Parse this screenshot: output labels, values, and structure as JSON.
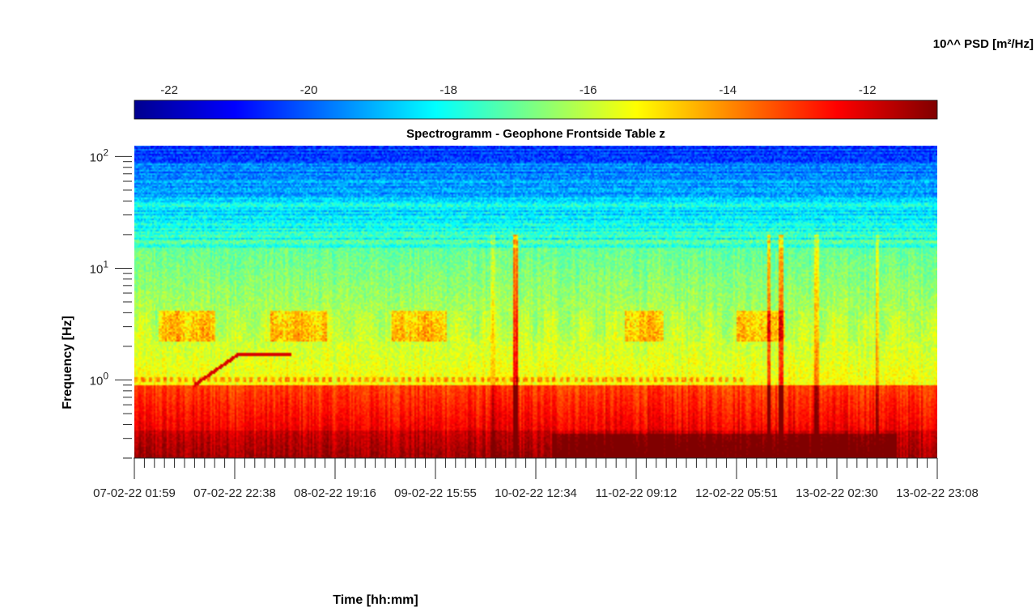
{
  "chart_data": {
    "type": "heatmap",
    "title": "Spectrogramm - Geophone Frontside Table z",
    "xlabel": "Time [hh:mm]",
    "ylabel": "Frequency [Hz]",
    "yscale": "log",
    "ylim": [
      0.2,
      125
    ],
    "y_ticks": [
      {
        "value": 1,
        "base": "10",
        "exp": "0"
      },
      {
        "value": 10,
        "base": "10",
        "exp": "1"
      },
      {
        "value": 100,
        "base": "10",
        "exp": "2"
      }
    ],
    "x_tick_labels": [
      "07-02-22 01:59",
      "07-02-22 22:38",
      "08-02-22 19:16",
      "09-02-22 15:55",
      "10-02-22 12:34",
      "11-02-22 09:12",
      "12-02-22 05:51",
      "13-02-22 02:30",
      "13-02-22 23:08"
    ],
    "colorbar": {
      "label": "10^^ PSD [m²/Hz]",
      "colormap": "jet",
      "range": [
        -22.5,
        -11
      ],
      "ticks": [
        "-22",
        "-20",
        "-18",
        "-16",
        "-14",
        "-12"
      ],
      "tick_values": [
        -22,
        -20,
        -18,
        -16,
        -14,
        -12
      ],
      "location": "top"
    },
    "features": {
      "background_low_freq_level": -13,
      "background_mid_freq_level": -16,
      "background_high_freq_level": -19,
      "band_3hz_episodes": [
        "07-02-22",
        "08-02-22",
        "09-02-22",
        "11-02-22",
        "12-02-22"
      ],
      "chirp_line_freq_range_hz": [
        0.9,
        1.7
      ],
      "line_1hz": true
    }
  }
}
